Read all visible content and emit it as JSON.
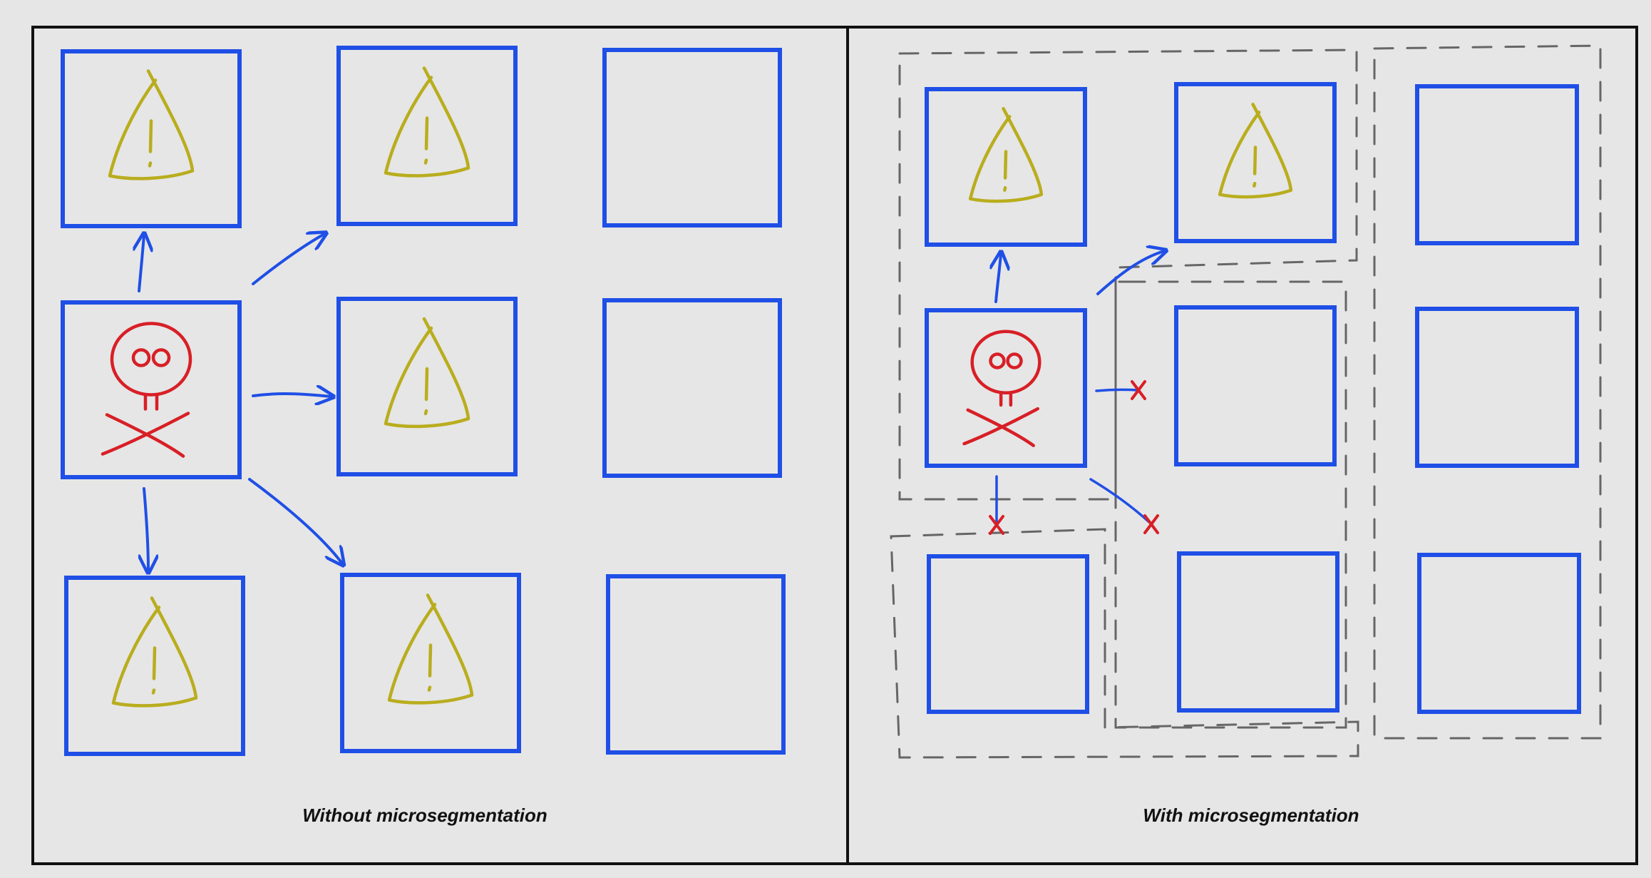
{
  "colors": {
    "background": "#e6e6e6",
    "frame": "#111111",
    "host_box": "#1f4fe6",
    "warning": "#b9ad1e",
    "attacker": "#d81f26",
    "arrow": "#1f4fe6",
    "blocked": "#d81f26",
    "segment_dash": "#666666"
  },
  "icons": {
    "warning": "warning-triangle-icon",
    "attacker": "skull-crossbones-icon",
    "blocked": "blocked-x-icon"
  },
  "panels": [
    {
      "caption": "Without microsegmentation",
      "grid": [
        [
          "warning",
          "warning",
          "empty"
        ],
        [
          "attacker",
          "warning",
          "empty"
        ],
        [
          "warning",
          "warning",
          "empty"
        ]
      ],
      "lateral_movement": "unrestricted"
    },
    {
      "caption": "With microsegmentation",
      "grid": [
        [
          "warning",
          "warning",
          "empty"
        ],
        [
          "attacker",
          "empty",
          "empty"
        ],
        [
          "empty",
          "empty",
          "empty"
        ]
      ],
      "lateral_movement": "blocked by segment boundaries"
    }
  ]
}
